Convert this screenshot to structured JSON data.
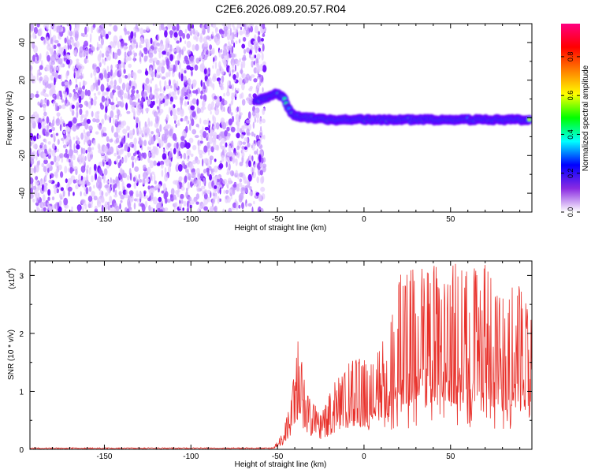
{
  "title": "C2E6.2026.089.20.57.R04",
  "chart_data": [
    {
      "type": "heatmap",
      "xlabel": "Height of straight line (km)",
      "ylabel": "Frequency (Hz)",
      "xlim": [
        -193,
        97
      ],
      "ylim": [
        -50,
        50
      ],
      "xticks": [
        -150,
        -100,
        -50,
        0,
        50
      ],
      "yticks": [
        -40,
        -20,
        0,
        20,
        40
      ],
      "ridge": [
        [
          -62,
          9
        ],
        [
          -55,
          11
        ],
        [
          -50,
          13
        ],
        [
          -46,
          10
        ],
        [
          -43,
          4
        ],
        [
          -40,
          1
        ],
        [
          -30,
          0
        ],
        [
          -20,
          -1
        ],
        [
          0,
          -1
        ],
        [
          30,
          -1
        ],
        [
          60,
          -1
        ],
        [
          95,
          -1
        ]
      ],
      "colorbar": {
        "label": "Normalized spectral amplitude",
        "range": [
          0,
          0.97
        ],
        "ticks": [
          "0.0",
          "0.2",
          "0.4",
          "0.6",
          "0.8"
        ],
        "colors": [
          "#ffffff",
          "#8a2be2",
          "#0000ff",
          "#00ffff",
          "#00ff00",
          "#ffff00",
          "#ff8000",
          "#ff0000",
          "#ff0080"
        ]
      }
    },
    {
      "type": "line",
      "xlabel": "Height of straight line (km)",
      "ylabel": "SNR (10 * v/v)",
      "yscale_label": "(x10",
      "yscale_exp": "4",
      "yscale_close": ")",
      "xlim": [
        -193,
        97
      ],
      "ylim": [
        0,
        3.25
      ],
      "xticks": [
        -150,
        -100,
        -50,
        0,
        50
      ],
      "yticks": [
        0,
        1,
        2,
        3
      ],
      "color": "#e8302a",
      "envelope": [
        [
          -193,
          0.01
        ],
        [
          -60,
          0.02
        ],
        [
          -52,
          0.05
        ],
        [
          -47,
          0.3
        ],
        [
          -42,
          0.9
        ],
        [
          -38,
          1.9
        ],
        [
          -33,
          1.0
        ],
        [
          -25,
          0.6
        ],
        [
          -15,
          1.3
        ],
        [
          -5,
          1.6
        ],
        [
          5,
          1.5
        ],
        [
          15,
          2.4
        ],
        [
          20,
          3.0
        ],
        [
          30,
          3.2
        ],
        [
          50,
          3.2
        ],
        [
          60,
          3.2
        ],
        [
          70,
          3.2
        ],
        [
          80,
          2.6
        ],
        [
          90,
          3.0
        ],
        [
          97,
          2.2
        ]
      ]
    }
  ]
}
